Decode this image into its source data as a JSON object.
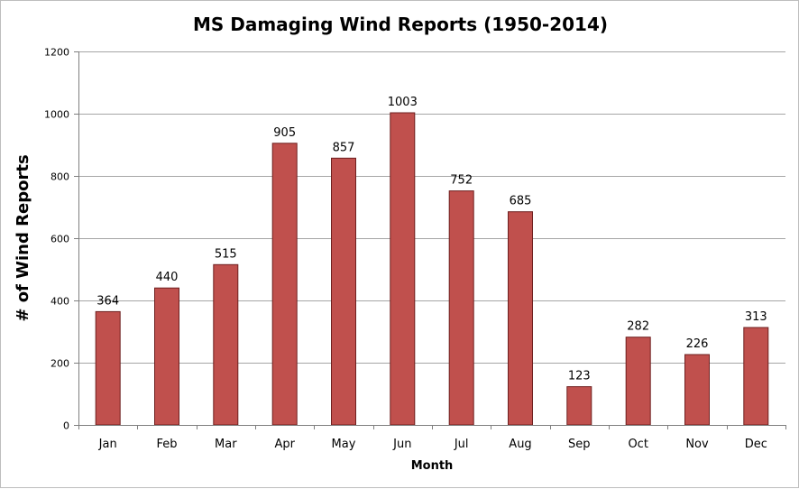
{
  "chart_data": {
    "type": "bar",
    "title": "MS Damaging Wind Reports (1950-2014)",
    "xlabel": "Month",
    "ylabel": "# of Wind Reports",
    "categories": [
      "Jan",
      "Feb",
      "Mar",
      "Apr",
      "May",
      "Jun",
      "Jul",
      "Aug",
      "Sep",
      "Oct",
      "Nov",
      "Dec"
    ],
    "values": [
      364,
      440,
      515,
      905,
      857,
      1003,
      752,
      685,
      123,
      282,
      226,
      313
    ],
    "ylim": [
      0,
      1200
    ],
    "yticks": [
      "0",
      "200",
      "400",
      "600",
      "800",
      "1000",
      "1200"
    ],
    "data_labels": [
      "364",
      "440",
      "515",
      "905",
      "857",
      "1003",
      "752",
      "685",
      "123",
      "282",
      "226",
      "313"
    ],
    "grid": true,
    "legend": "none",
    "bar_color": "#c0504d",
    "bar_border_color": "#6e1f1f"
  }
}
